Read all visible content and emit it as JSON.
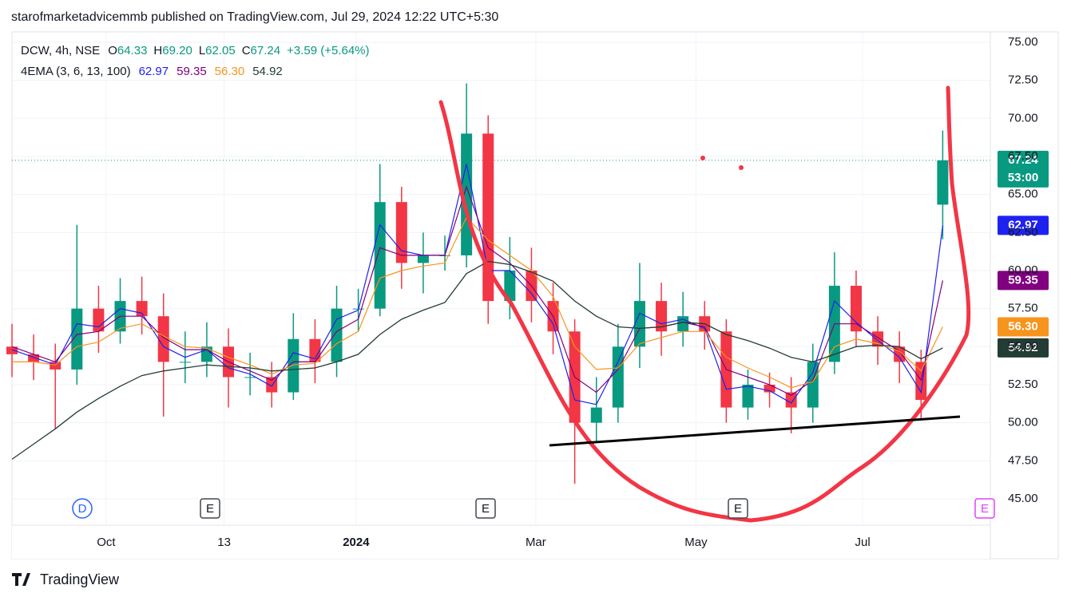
{
  "chart_data": {
    "type": "candlestick",
    "published": "starofmarketadvicemmb published on TradingView.com, Jul 29, 2024 12:22 UTC+5:30",
    "brand": "TradingView",
    "header": {
      "symbol": "DCW, 4h, NSE",
      "fields": [
        {
          "key": "O",
          "value": "64.33"
        },
        {
          "key": "H",
          "value": "69.20"
        },
        {
          "key": "L",
          "value": "62.05"
        },
        {
          "key": "C",
          "value": "67.24"
        }
      ],
      "change": "+3.59 (+5.64%)",
      "indicator": "4EMA (3, 6, 13, 100)",
      "ema_values": [
        "62.97",
        "59.35",
        "56.30",
        "54.92"
      ],
      "countdown": "53:00"
    },
    "events": [
      "D",
      "E",
      "E",
      "E",
      "E"
    ],
    "up_color": "#089981",
    "down_color": "#f23645",
    "open": [
      55,
      54.5,
      54,
      53.5,
      57.5,
      56,
      58,
      57,
      54,
      54,
      55,
      53,
      53,
      52,
      55.5,
      54,
      57.5,
      57.5,
      64.5,
      60.5,
      61,
      61,
      69,
      58,
      60,
      58,
      56,
      50,
      51,
      55,
      58,
      56,
      57,
      56,
      51,
      52.5,
      52,
      51,
      54,
      59,
      56,
      55,
      54,
      64.33
    ],
    "high": [
      56.5,
      55.8,
      55.2,
      63,
      59,
      59.5,
      59.6,
      58.5,
      56,
      56.6,
      56.2,
      54.6,
      54,
      57.2,
      56.8,
      59,
      58.8,
      67,
      65.5,
      62.5,
      62.3,
      72.3,
      70.2,
      62.2,
      61.5,
      59.2,
      56.8,
      53,
      56.5,
      60.5,
      59.2,
      58.6,
      58,
      56.8,
      53.5,
      53.3,
      53,
      55.2,
      61.2,
      60,
      57,
      56,
      54.8,
      69.2
    ],
    "low": [
      53,
      52.8,
      49.6,
      52.5,
      54.6,
      55.2,
      55.8,
      50.4,
      52.6,
      53,
      51,
      51.8,
      51,
      51.5,
      52.6,
      53,
      56,
      57,
      58.8,
      58.5,
      60,
      60.2,
      56.5,
      56.8,
      56.6,
      54.5,
      46,
      48.8,
      50,
      53.6,
      54.4,
      55,
      54.8,
      50,
      50.2,
      51,
      49.3,
      50,
      53.2,
      55,
      53.8,
      52.6,
      50.3,
      62.05
    ],
    "close": [
      54.5,
      54,
      53.5,
      57.5,
      56,
      58,
      57,
      54,
      54,
      55,
      53,
      53,
      52,
      55.5,
      54,
      57.5,
      57.5,
      64.5,
      60.5,
      61,
      61,
      69,
      58,
      60,
      58,
      56,
      50,
      51,
      55,
      58,
      56,
      57,
      56,
      51,
      52.5,
      52,
      51,
      54,
      59,
      56,
      55,
      54,
      51.5,
      67.24
    ],
    "series": [
      {
        "name": "EMA 3",
        "color": "#1e22f0",
        "values": [
          54.8,
          54.3,
          53.8,
          56.5,
          56.3,
          57.5,
          57.2,
          55,
          54.3,
          54.8,
          53.6,
          53.2,
          52.4,
          54.6,
          54.2,
          56.8,
          57.4,
          63,
          61.3,
          61,
          61,
          67,
          60,
          60,
          58.5,
          56.5,
          51.5,
          51.2,
          54,
          57.2,
          56.5,
          56.8,
          56.2,
          52.2,
          52.4,
          52.1,
          51.3,
          53.3,
          58,
          56.6,
          55.4,
          54.3,
          52,
          62.97
        ]
      },
      {
        "name": "EMA 6",
        "color": "#800080",
        "values": [
          55,
          54.5,
          54,
          55.8,
          56,
          57,
          57,
          55.6,
          54.8,
          54.8,
          54,
          53.4,
          52.8,
          54,
          54,
          56,
          56.8,
          61.5,
          61,
          61,
          61,
          65.5,
          61.5,
          60.5,
          59,
          57,
          53,
          52,
          53.5,
          56.2,
          56.3,
          56.6,
          56.3,
          53.5,
          53,
          52.5,
          51.8,
          52.8,
          56.5,
          56.5,
          55.6,
          54.7,
          52.8,
          59.35
        ]
      },
      {
        "name": "EMA 13",
        "color": "#f7941d",
        "values": [
          54,
          54,
          53.8,
          55,
          55.3,
          56.2,
          56.5,
          55.7,
          55,
          54.9,
          54.3,
          53.8,
          53.2,
          53.8,
          53.9,
          55.2,
          56,
          59.5,
          60,
          60.3,
          60.5,
          63.5,
          62,
          61,
          60,
          58.3,
          55,
          53.5,
          53.6,
          55.2,
          55.6,
          56,
          56,
          54.3,
          53.6,
          53,
          52.3,
          52.7,
          55,
          55.5,
          55.2,
          54.7,
          53.4,
          56.3
        ]
      },
      {
        "name": "EMA 100",
        "color": "#233c36",
        "values": [
          47.6,
          48.6,
          49.6,
          50.7,
          51.6,
          52.4,
          53.1,
          53.4,
          53.6,
          53.8,
          53.7,
          53.6,
          53.4,
          53.5,
          53.6,
          54,
          54.5,
          55.8,
          56.8,
          57.4,
          57.9,
          59.8,
          60.6,
          60.4,
          59.9,
          59.3,
          58,
          57,
          56.3,
          56.2,
          56.3,
          56.6,
          56.5,
          55.8,
          55.4,
          54.9,
          54.3,
          54,
          54.5,
          55,
          55.1,
          55,
          54.2,
          54.92
        ]
      }
    ],
    "xlim": [
      0,
      45.2
    ],
    "xticks": [
      {
        "value": 4.35,
        "label": "Oct"
      },
      {
        "value": 9.8,
        "label": "13"
      },
      {
        "value": 15.9,
        "label": "2024"
      },
      {
        "value": 24.2,
        "label": "Mar"
      },
      {
        "value": 31.6,
        "label": "May"
      },
      {
        "value": 39.3,
        "label": "Jul"
      }
    ],
    "ylim": [
      43.27,
      75.68
    ],
    "yticks": [
      {
        "value": 45,
        "label": "45.00"
      },
      {
        "value": 47.5,
        "label": "47.50"
      },
      {
        "value": 50,
        "label": "50.00"
      },
      {
        "value": 52.5,
        "label": "52.50"
      },
      {
        "value": 55,
        "label": "55.00"
      },
      {
        "value": 57.5,
        "label": "57.50"
      },
      {
        "value": 60,
        "label": "60.00"
      },
      {
        "value": 62.5,
        "label": "62.50"
      },
      {
        "value": 65,
        "label": "65.00"
      },
      {
        "value": 67.5,
        "label": "67.50"
      },
      {
        "value": 70,
        "label": "70.00"
      },
      {
        "value": 72.5,
        "label": "72.50"
      },
      {
        "value": 75,
        "label": "75.00"
      }
    ],
    "grid": true
  }
}
